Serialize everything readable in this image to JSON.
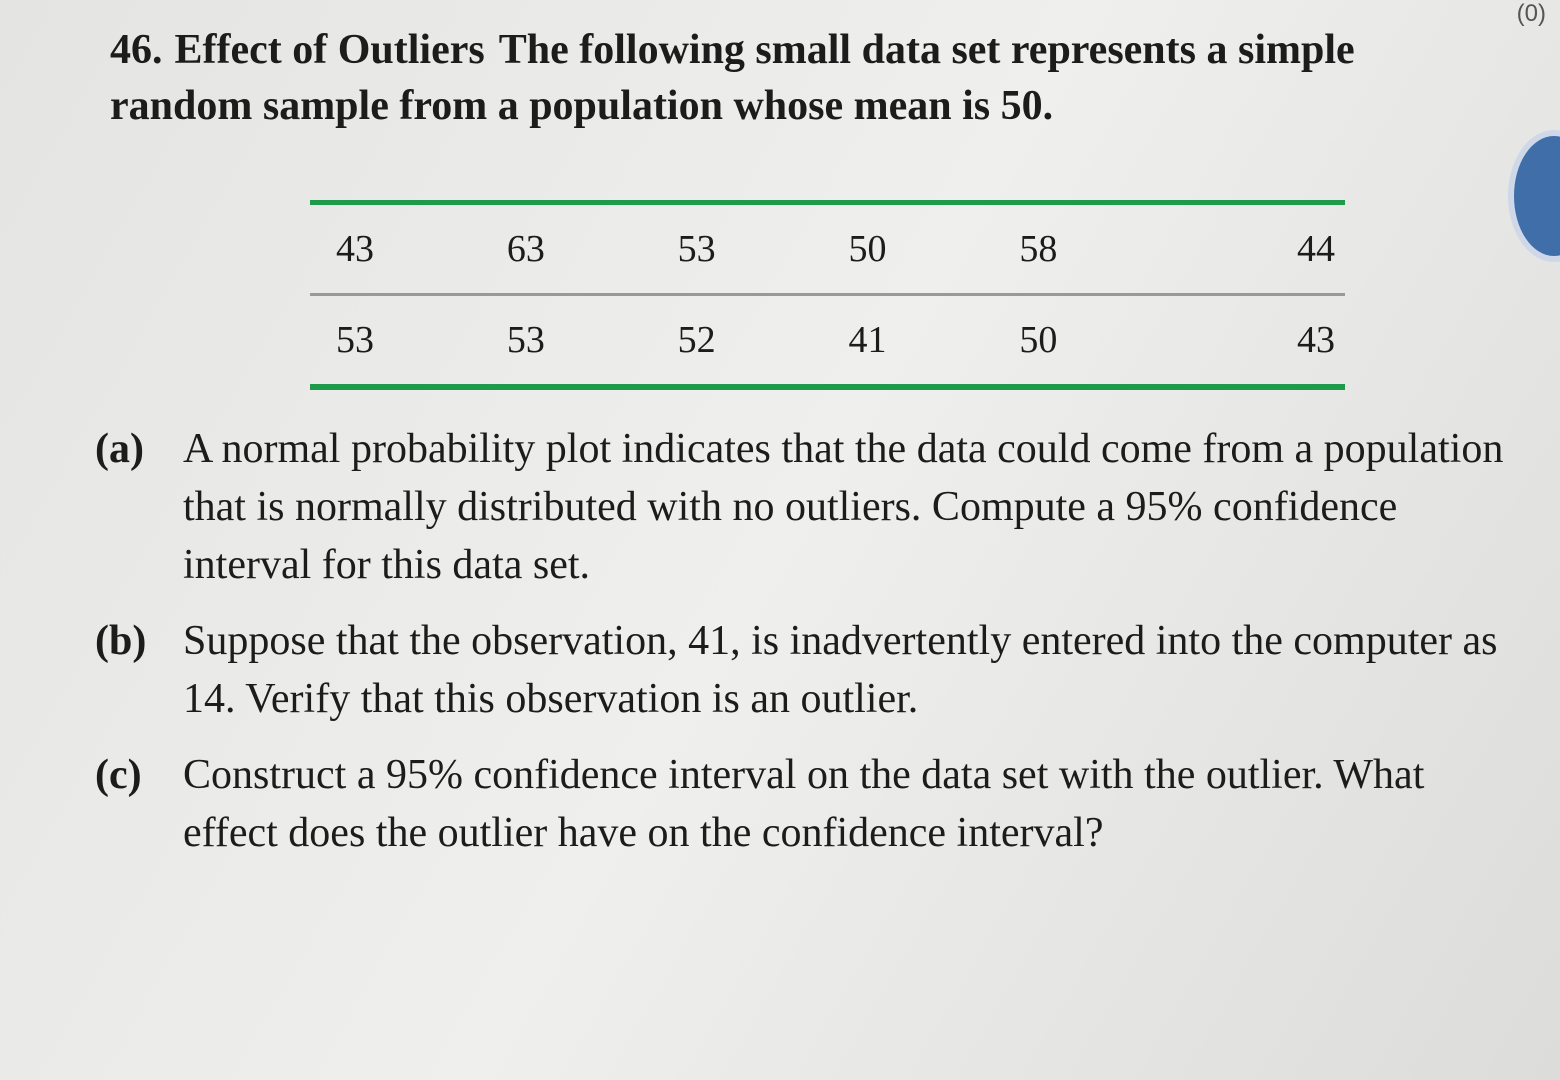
{
  "badge": "(0)",
  "header": {
    "number": "46.",
    "title": "Effect of Outliers",
    "text": "The following small data set represents a simple random sample from a population whose mean is 50."
  },
  "table": {
    "rows": [
      [
        43,
        63,
        53,
        50,
        58,
        44
      ],
      [
        53,
        53,
        52,
        41,
        50,
        43
      ]
    ]
  },
  "parts": [
    {
      "label": "(a)",
      "text": "A normal probability plot indicates that the data could come from a population that is normally distributed with no outliers. Compute a 95% confidence interval for this data set."
    },
    {
      "label": "(b)",
      "text": "Suppose that the observation, 41, is inadvertently entered into the computer as 14. Verify that this observation is an outlier."
    },
    {
      "label": "(c)",
      "text": "Construct a 95% confidence interval on the data set with the outlier. What effect does the outlier have on the confidence interval?"
    }
  ]
}
